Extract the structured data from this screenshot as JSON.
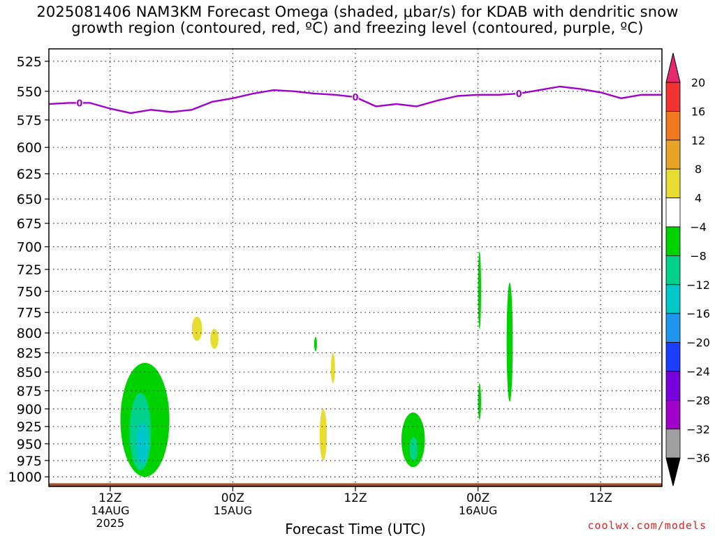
{
  "title_line1": "2025081406 NAM3KM Forecast Omega (shaded, μbar/s) for KDAB with dendritic snow",
  "title_line2": "growth region (contoured, red, ºC) and freezing level (contoured, purple, ºC)",
  "credit": "coolwx.com/models",
  "colors": {
    "freezing_level": "#a000c8",
    "terrain": "#a0522d",
    "grid": "#000000"
  },
  "chart_data": {
    "type": "heatmap",
    "title": "2025081406 NAM3KM Forecast Omega (shaded, μbar/s) for KDAB with dendritic snow growth region (contoured, red, ºC) and freezing level (contoured, purple, ºC)",
    "xlabel": "Forecast Time (UTC)",
    "ylabel": "",
    "x_ticks": [
      {
        "hour": 12,
        "label": "12Z",
        "sublabels": [
          "14AUG",
          "2025"
        ]
      },
      {
        "hour": 24,
        "label": "00Z",
        "sublabels": [
          "15AUG"
        ]
      },
      {
        "hour": 36,
        "label": "12Z",
        "sublabels": []
      },
      {
        "hour": 48,
        "label": "00Z",
        "sublabels": [
          "16AUG"
        ]
      },
      {
        "hour": 60,
        "label": "12Z",
        "sublabels": []
      }
    ],
    "xlim_hours": [
      6,
      66
    ],
    "y_ticks": [
      525,
      550,
      575,
      600,
      625,
      650,
      675,
      700,
      725,
      750,
      775,
      800,
      825,
      850,
      875,
      900,
      925,
      950,
      975,
      1000
    ],
    "ylim_hpa": [
      515,
      1015
    ],
    "y_scale": "log-pressure",
    "grid": true,
    "colorbar": {
      "labels": [
        "20",
        "16",
        "12",
        "8",
        "4",
        "−4",
        "−8",
        "−12",
        "−16",
        "−20",
        "−24",
        "−28",
        "−32",
        "−36"
      ],
      "bins": [
        {
          "range": "16 to 20",
          "color": "#f03232"
        },
        {
          "range": "12 to 16",
          "color": "#f07820"
        },
        {
          "range": "8 to 12",
          "color": "#e6a528"
        },
        {
          "range": "4 to 8",
          "color": "#e6dc32"
        },
        {
          "range": "-4 to 4",
          "color": "#ffffff"
        },
        {
          "range": "-8 to -4",
          "color": "#00d200"
        },
        {
          "range": "-12 to -8",
          "color": "#00d28c"
        },
        {
          "range": "-16 to -12",
          "color": "#00c8c8"
        },
        {
          "range": "-20 to -16",
          "color": "#1e96f0"
        },
        {
          "range": "-24 to -20",
          "color": "#1e3cff"
        },
        {
          "range": "-28 to -24",
          "color": "#7800dc"
        },
        {
          "range": "-32 to -28",
          "color": "#a000c8"
        },
        {
          "range": "-36 to -32",
          "color": "#a0a0a0"
        }
      ],
      "over_color": "#e6286e",
      "under_color": "#000000"
    },
    "freezing_level": {
      "label": "0",
      "label_hours": [
        9.0,
        36.0,
        52.0
      ],
      "hours": [
        6,
        8,
        10,
        12,
        14,
        16,
        18,
        20,
        22,
        24,
        26,
        28,
        30,
        32,
        34,
        36,
        38,
        40,
        42,
        44,
        46,
        48,
        50,
        52,
        54,
        56,
        58,
        60,
        62,
        64,
        66
      ],
      "pressure": [
        561,
        560,
        560,
        565,
        569,
        566,
        568,
        566,
        559,
        556,
        552,
        549,
        550,
        552,
        553,
        555,
        563,
        561,
        563,
        558,
        554,
        553,
        553,
        552,
        549,
        546,
        548,
        551,
        556,
        553,
        553
      ]
    },
    "omega_regions": [
      {
        "value": "-4 to -8",
        "color": "#00d200",
        "hours": [
          13.0,
          17.8
        ],
        "pressure": [
          838,
          1000
        ]
      },
      {
        "value": "-8 to -12",
        "color": "#00d28c",
        "hours": [
          13.9,
          16.0
        ],
        "pressure": [
          878,
          990
        ]
      },
      {
        "value": "-12 to -16",
        "color": "#00c8c8",
        "hours": [
          14.5,
          15.8
        ],
        "pressure": [
          920,
          980
        ]
      },
      {
        "value": "4 to 8",
        "color": "#e6dc32",
        "hours": [
          20.0,
          21.0
        ],
        "pressure": [
          780,
          810
        ]
      },
      {
        "value": "4 to 8",
        "color": "#e6dc32",
        "hours": [
          21.8,
          22.6
        ],
        "pressure": [
          795,
          820
        ]
      },
      {
        "value": "-4 to -8",
        "color": "#00d200",
        "hours": [
          32.0,
          32.2
        ],
        "pressure": [
          805,
          823
        ]
      },
      {
        "value": "4 to 8",
        "color": "#e6dc32",
        "hours": [
          32.5,
          33.2
        ],
        "pressure": [
          900,
          975
        ]
      },
      {
        "value": "4 to 8",
        "color": "#e6dc32",
        "hours": [
          33.6,
          34.0
        ],
        "pressure": [
          825,
          865
        ]
      },
      {
        "value": "-4 to -8",
        "color": "#00d200",
        "hours": [
          40.5,
          42.8
        ],
        "pressure": [
          905,
          985
        ]
      },
      {
        "value": "-8 to -12",
        "color": "#00d28c",
        "hours": [
          41.3,
          42.1
        ],
        "pressure": [
          940,
          975
        ]
      },
      {
        "value": "-4 to -8",
        "color": "#00d200",
        "hours": [
          48.0,
          48.3
        ],
        "pressure": [
          705,
          795
        ]
      },
      {
        "value": "-4 to -8",
        "color": "#00d200",
        "hours": [
          48.0,
          48.3
        ],
        "pressure": [
          865,
          915
        ]
      },
      {
        "value": "-4 to -8",
        "color": "#00d200",
        "hours": [
          50.8,
          51.4
        ],
        "pressure": [
          740,
          890
        ]
      }
    ]
  }
}
